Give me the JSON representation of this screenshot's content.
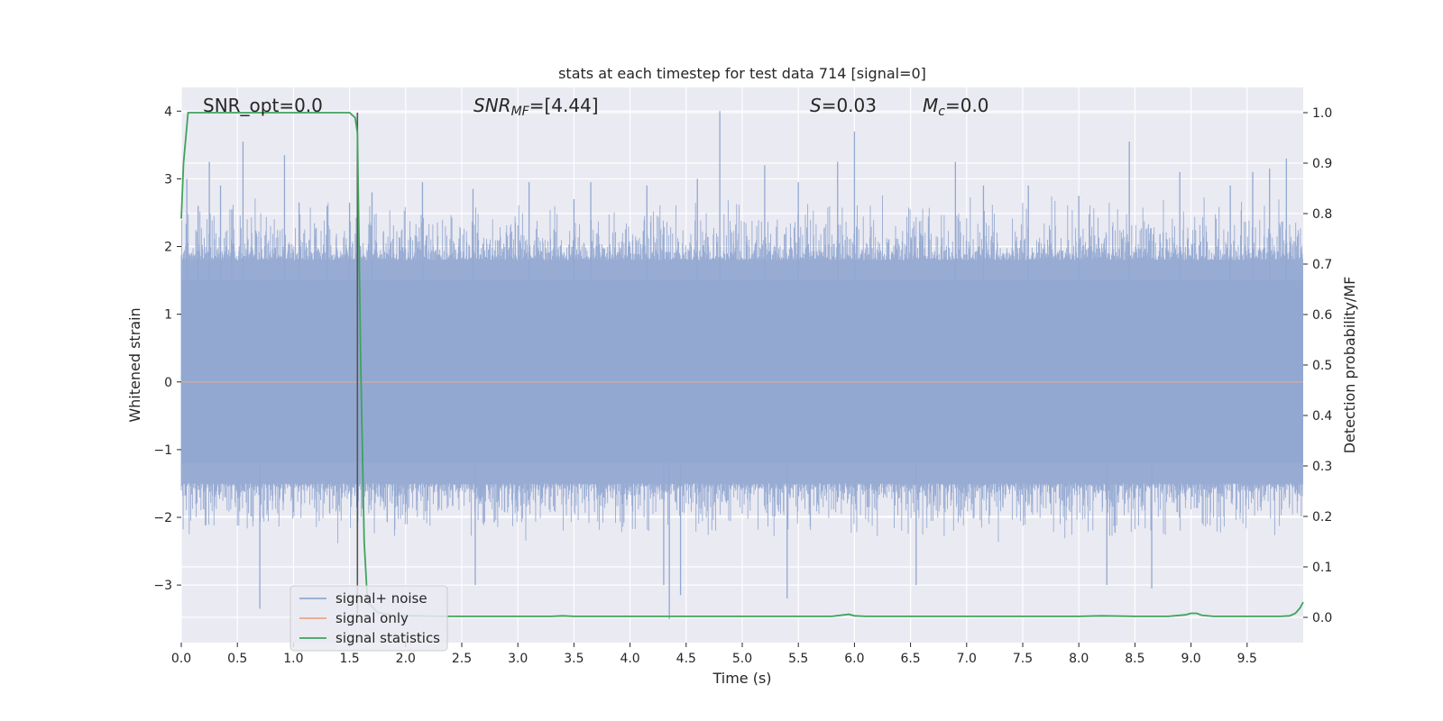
{
  "chart_data": {
    "type": "line",
    "title": "stats at each timestep for test data 714 [signal=0]",
    "xlabel": "Time (s)",
    "ylabel_left": "Whitened strain",
    "ylabel_right": "Detection probability/MF",
    "xlim": [
      0.0,
      10.0
    ],
    "ylim_left": [
      -3.85,
      4.35
    ],
    "ylim_right": [
      -0.05,
      1.05
    ],
    "x_ticks": [
      "0.0",
      "0.5",
      "1.0",
      "1.5",
      "2.0",
      "2.5",
      "3.0",
      "3.5",
      "4.0",
      "4.5",
      "5.0",
      "5.5",
      "6.0",
      "6.5",
      "7.0",
      "7.5",
      "8.0",
      "8.5",
      "9.0",
      "9.5"
    ],
    "y_left_ticks": [
      "4",
      "3",
      "2",
      "1",
      "0",
      "−1",
      "−2",
      "−3"
    ],
    "y_right_ticks": [
      "1.0",
      "0.9",
      "0.8",
      "0.7",
      "0.6",
      "0.5",
      "0.4",
      "0.3",
      "0.2",
      "0.1",
      "0.0"
    ],
    "grid": true,
    "legend_placement": "lower-left",
    "annotations": {
      "snr_opt": "SNR_opt=0.0",
      "snr_mf": "SNR",
      "snr_mf_sub": "MF",
      "snr_mf_val": "=[4.44]",
      "s_label": "S",
      "s_val": "=0.03",
      "mc_label": "M",
      "mc_sub": "c",
      "mc_val": "=0.0"
    },
    "vertical_marker_x": 1.57,
    "series": [
      {
        "name": "signal+ noise",
        "color": "#92a8d1",
        "description_axis": "left",
        "envelope_typical": [
          -1.5,
          1.8
        ],
        "envelope_peaks": [
          [
            0.05,
            3.0
          ],
          [
            0.15,
            2.6
          ],
          [
            0.25,
            3.25
          ],
          [
            0.35,
            2.9
          ],
          [
            0.45,
            2.55
          ],
          [
            0.55,
            3.55
          ],
          [
            0.7,
            -3.35
          ],
          [
            0.92,
            3.35
          ],
          [
            1.05,
            2.65
          ],
          [
            1.3,
            2.6
          ],
          [
            1.5,
            2.65
          ],
          [
            1.7,
            2.8
          ],
          [
            2.15,
            2.95
          ],
          [
            2.6,
            2.85
          ],
          [
            2.62,
            -3.0
          ],
          [
            3.1,
            2.95
          ],
          [
            3.5,
            2.7
          ],
          [
            3.65,
            2.95
          ],
          [
            4.15,
            2.9
          ],
          [
            4.3,
            -3.0
          ],
          [
            4.35,
            -3.5
          ],
          [
            4.45,
            -3.15
          ],
          [
            4.8,
            4.0
          ],
          [
            4.6,
            3.0
          ],
          [
            5.2,
            3.2
          ],
          [
            5.4,
            -3.2
          ],
          [
            5.5,
            2.95
          ],
          [
            5.85,
            3.25
          ],
          [
            6.0,
            3.7
          ],
          [
            6.55,
            -3.0
          ],
          [
            6.9,
            3.25
          ],
          [
            7.15,
            2.9
          ],
          [
            7.55,
            2.9
          ],
          [
            8.0,
            2.75
          ],
          [
            8.25,
            -3.0
          ],
          [
            8.45,
            3.55
          ],
          [
            8.65,
            -3.05
          ],
          [
            8.9,
            3.1
          ],
          [
            9.35,
            2.9
          ],
          [
            9.55,
            3.1
          ],
          [
            9.7,
            3.15
          ],
          [
            9.85,
            3.3
          ]
        ]
      },
      {
        "name": "signal only",
        "color": "#e8a58a",
        "description_axis": "left",
        "x": [
          0.0,
          10.0
        ],
        "y": [
          0.0,
          0.0
        ]
      },
      {
        "name": "signal statistics",
        "color": "#3fa35c",
        "description_axis": "right",
        "x": [
          0.0,
          0.02,
          0.06,
          0.12,
          0.3,
          0.6,
          1.0,
          1.3,
          1.5,
          1.55,
          1.57,
          1.6,
          1.63,
          1.66,
          1.75,
          1.9,
          2.1,
          2.3,
          2.6,
          3.0,
          3.3,
          3.4,
          3.5,
          3.8,
          4.2,
          4.5,
          5.0,
          5.4,
          5.6,
          5.8,
          5.95,
          6.0,
          6.1,
          6.5,
          7.0,
          7.5,
          8.0,
          8.2,
          8.5,
          8.8,
          8.95,
          9.0,
          9.05,
          9.1,
          9.2,
          9.4,
          9.6,
          9.8,
          9.88,
          9.93,
          9.97,
          10.0
        ],
        "y": [
          0.79,
          0.9,
          1.0,
          1.0,
          1.0,
          1.0,
          1.0,
          1.0,
          1.0,
          0.99,
          0.96,
          0.5,
          0.15,
          0.03,
          0.01,
          0.003,
          0.003,
          0.002,
          0.002,
          0.002,
          0.002,
          0.003,
          0.002,
          0.002,
          0.002,
          0.002,
          0.002,
          0.002,
          0.002,
          0.002,
          0.006,
          0.003,
          0.002,
          0.002,
          0.002,
          0.002,
          0.002,
          0.003,
          0.002,
          0.002,
          0.005,
          0.008,
          0.008,
          0.004,
          0.002,
          0.002,
          0.002,
          0.002,
          0.003,
          0.008,
          0.018,
          0.03
        ]
      }
    ]
  }
}
